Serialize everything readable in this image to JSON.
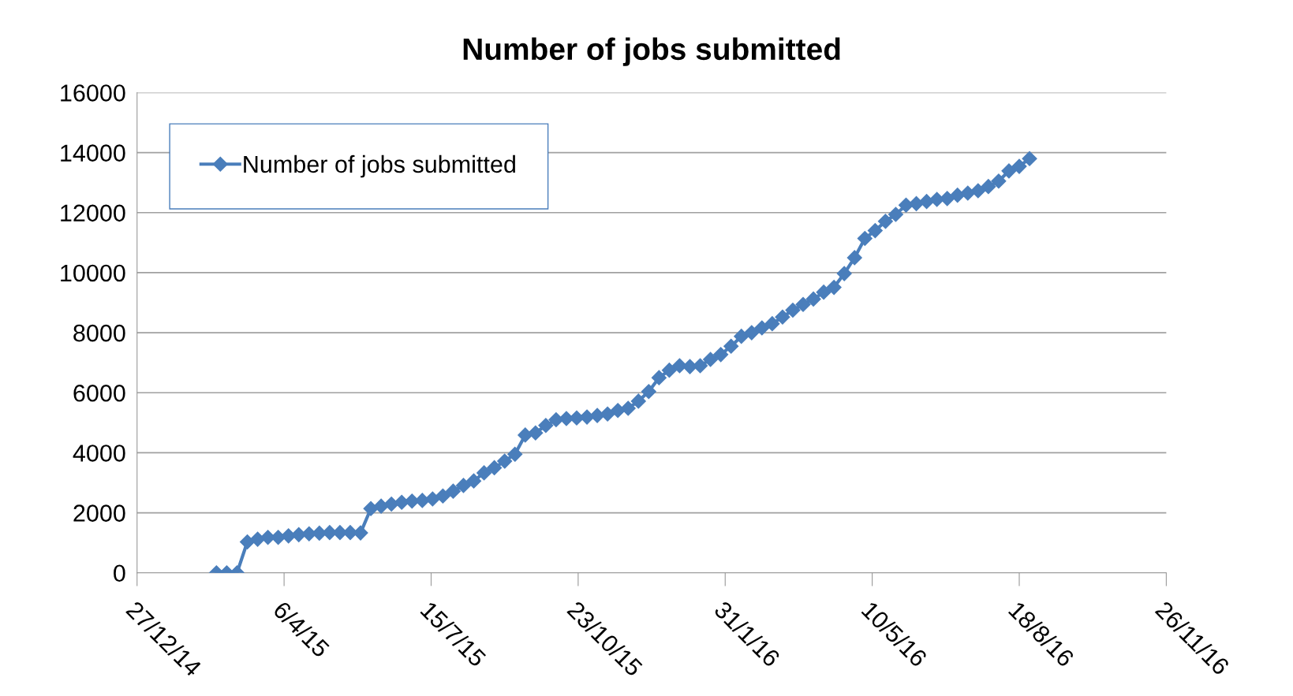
{
  "chart_data": {
    "type": "line",
    "title": "Number of jobs submitted",
    "x": [
      "2015-02-19",
      "2015-02-26",
      "2015-03-05",
      "2015-03-12",
      "2015-03-19",
      "2015-03-26",
      "2015-04-02",
      "2015-04-09",
      "2015-04-16",
      "2015-04-23",
      "2015-04-30",
      "2015-05-07",
      "2015-05-14",
      "2015-05-21",
      "2015-05-28",
      "2015-06-04",
      "2015-06-11",
      "2015-06-18",
      "2015-06-25",
      "2015-07-02",
      "2015-07-09",
      "2015-07-16",
      "2015-07-23",
      "2015-07-30",
      "2015-08-06",
      "2015-08-13",
      "2015-08-20",
      "2015-08-27",
      "2015-09-03",
      "2015-09-10",
      "2015-09-17",
      "2015-09-24",
      "2015-10-01",
      "2015-10-08",
      "2015-10-15",
      "2015-10-22",
      "2015-10-29",
      "2015-11-05",
      "2015-11-12",
      "2015-11-19",
      "2015-11-26",
      "2015-12-03",
      "2015-12-10",
      "2015-12-17",
      "2015-12-24",
      "2015-12-31",
      "2016-01-07",
      "2016-01-14",
      "2016-01-21",
      "2016-01-28",
      "2016-02-04",
      "2016-02-11",
      "2016-02-18",
      "2016-02-25",
      "2016-03-03",
      "2016-03-10",
      "2016-03-17",
      "2016-03-24",
      "2016-03-31",
      "2016-04-07",
      "2016-04-14",
      "2016-04-21",
      "2016-04-28",
      "2016-05-05",
      "2016-05-12",
      "2016-05-19",
      "2016-05-26",
      "2016-06-02",
      "2016-06-09",
      "2016-06-16",
      "2016-06-23",
      "2016-06-30",
      "2016-07-07",
      "2016-07-14",
      "2016-07-21",
      "2016-07-28",
      "2016-08-04",
      "2016-08-11",
      "2016-08-18",
      "2016-08-25"
    ],
    "series": [
      {
        "name": "Number of jobs submitted",
        "color": "#4a7ebb",
        "values": [
          0,
          0,
          0,
          1030,
          1120,
          1180,
          1180,
          1230,
          1270,
          1300,
          1320,
          1340,
          1340,
          1340,
          1330,
          2140,
          2220,
          2290,
          2350,
          2390,
          2410,
          2460,
          2560,
          2720,
          2910,
          3060,
          3330,
          3500,
          3720,
          3950,
          4590,
          4660,
          4910,
          5100,
          5140,
          5160,
          5190,
          5240,
          5290,
          5410,
          5480,
          5720,
          6040,
          6500,
          6750,
          6900,
          6870,
          6900,
          7110,
          7270,
          7550,
          7880,
          8000,
          8160,
          8300,
          8520,
          8750,
          8940,
          9120,
          9350,
          9510,
          9970,
          10500,
          11140,
          11400,
          11710,
          11940,
          12250,
          12300,
          12370,
          12440,
          12470,
          12580,
          12650,
          12730,
          12870,
          13050,
          13390,
          13540,
          13800
        ]
      }
    ],
    "xlim": [
      "2014-12-27",
      "2016-11-26"
    ],
    "xticks": [
      {
        "value": "2014-12-27",
        "label": "27/12/14"
      },
      {
        "value": "2015-04-06",
        "label": "6/4/15"
      },
      {
        "value": "2015-07-15",
        "label": "15/7/15"
      },
      {
        "value": "2015-10-23",
        "label": "23/10/15"
      },
      {
        "value": "2016-01-31",
        "label": "31/1/16"
      },
      {
        "value": "2016-05-10",
        "label": "10/5/16"
      },
      {
        "value": "2016-08-18",
        "label": "18/8/16"
      },
      {
        "value": "2016-11-26",
        "label": "26/11/16"
      }
    ],
    "ylim": [
      0,
      16000
    ],
    "yticks": [
      0,
      2000,
      4000,
      6000,
      8000,
      10000,
      12000,
      14000,
      16000
    ],
    "grid": "y",
    "legend": "top left",
    "marker": "diamond",
    "line_style": "solid"
  }
}
